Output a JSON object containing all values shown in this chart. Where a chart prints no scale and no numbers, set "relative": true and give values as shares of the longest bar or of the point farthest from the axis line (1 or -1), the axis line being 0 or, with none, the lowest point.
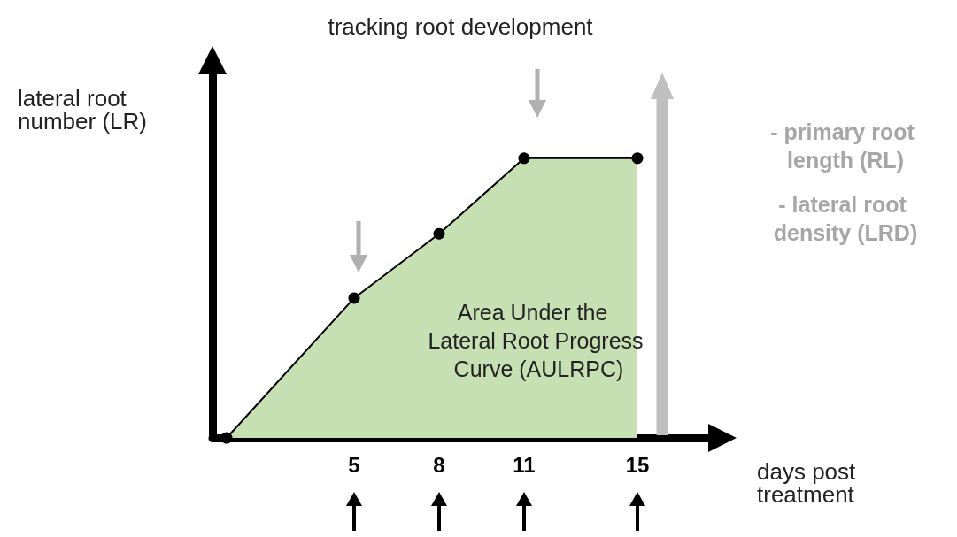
{
  "chart_data": {
    "type": "area",
    "title": "tracking root development",
    "xlabel": "days post treatment",
    "ylabel": "lateral root number (LR)",
    "relative": true,
    "x": [
      0.5,
      5,
      8,
      11,
      15
    ],
    "xlim": [
      0,
      17.5
    ],
    "xticks": [
      5,
      8,
      11,
      15
    ],
    "series": [
      {
        "color": "#c6e0b4",
        "values": [
          0,
          0.5,
          0.73,
          1,
          1
        ]
      }
    ],
    "marker": "circle",
    "grid": false,
    "annotations": [
      "Area Under the Lateral Root Progress Curve (AULRPC)",
      "- primary root length (RL)",
      "- lateral root density (LRD)"
    ]
  }
}
